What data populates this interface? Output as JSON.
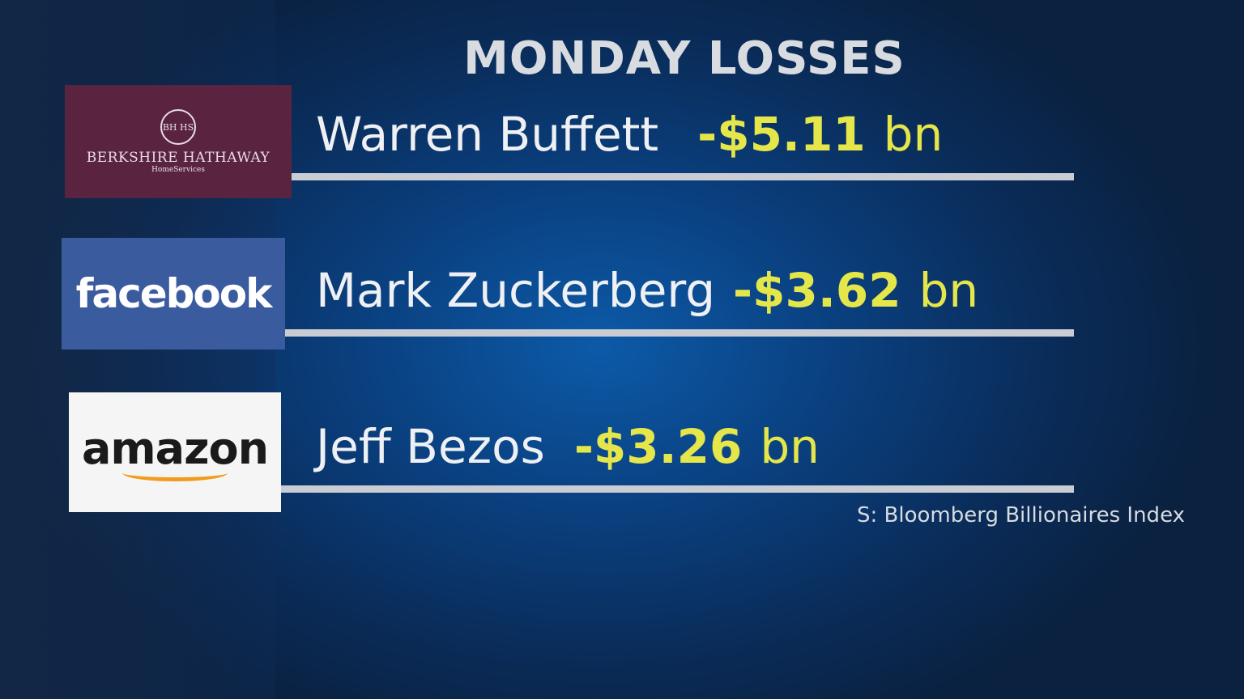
{
  "title": "MONDAY LOSSES",
  "rows": [
    {
      "logo": {
        "monogram": "BH HS",
        "name": "BERKSHIRE HATHAWAY",
        "sub": "HomeServices"
      },
      "person": "Warren Buffett",
      "amount": "-$5.11",
      "unit": "bn"
    },
    {
      "logo": {
        "name": "facebook"
      },
      "person": "Mark Zuckerberg",
      "amount": "-$3.62",
      "unit": "bn"
    },
    {
      "logo": {
        "name": "amazon"
      },
      "person": "Jeff Bezos",
      "amount": "-$3.26",
      "unit": "bn"
    }
  ],
  "source": "S: Bloomberg Billionaires Index"
}
